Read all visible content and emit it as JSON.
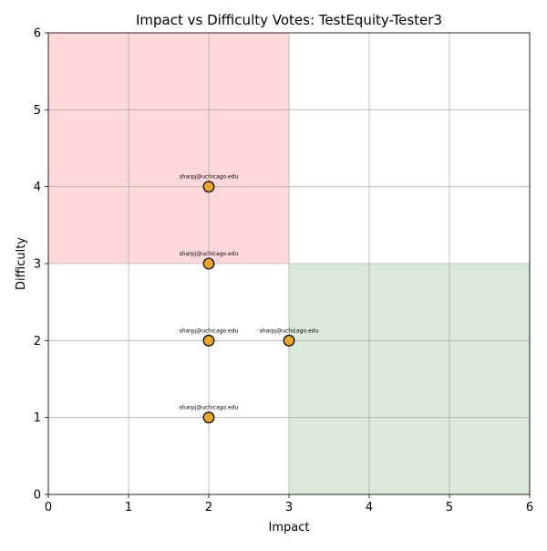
{
  "chart_data": {
    "type": "scatter",
    "title": "Impact vs Difficulty Votes: TestEquity-Tester3",
    "xlabel": "Impact",
    "ylabel": "Difficulty",
    "xlim": [
      0,
      6
    ],
    "ylim": [
      0,
      6
    ],
    "xticks": [
      "0",
      "1",
      "2",
      "3",
      "4",
      "5",
      "6"
    ],
    "yticks": [
      "0",
      "1",
      "2",
      "3",
      "4",
      "5",
      "6"
    ],
    "grid": true,
    "regions": [
      {
        "name": "high-difficulty-low-impact",
        "x": [
          0,
          3
        ],
        "y": [
          3,
          6
        ],
        "color": "#ffd9d9"
      },
      {
        "name": "low-difficulty-high-impact",
        "x": [
          3,
          6
        ],
        "y": [
          0,
          3
        ],
        "color": "#d9ead8"
      }
    ],
    "points": [
      {
        "x": 2,
        "y": 4,
        "label": "sharpj@uchicago.edu"
      },
      {
        "x": 2,
        "y": 3,
        "label": "sharpj@uchicago.edu"
      },
      {
        "x": 2,
        "y": 2,
        "label": "sharpj@uchicago.edu"
      },
      {
        "x": 3,
        "y": 2,
        "label": "sharpj@uchicago.edu"
      },
      {
        "x": 2,
        "y": 1,
        "label": "sharpj@uchicago.edu"
      }
    ],
    "marker_color": "#e5a530",
    "marker_edge_color": "#000000"
  }
}
